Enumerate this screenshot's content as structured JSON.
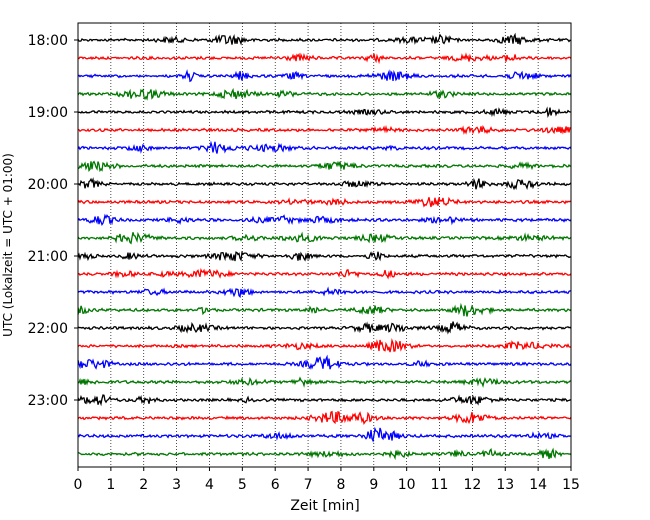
{
  "chart_data": {
    "type": "line",
    "title": "",
    "xlabel": "Zeit  [min]",
    "ylabel": "UTC (Lokalzeit = UTC + 01:00)",
    "xlim": [
      0,
      15
    ],
    "x_ticks": [
      "0",
      "1",
      "2",
      "3",
      "4",
      "5",
      "6",
      "7",
      "8",
      "9",
      "10",
      "11",
      "12",
      "13",
      "14",
      "15"
    ],
    "y_ticks": [
      "18:00",
      "19:00",
      "20:00",
      "21:00",
      "22:00",
      "23:00"
    ],
    "grid": "vertical dotted at each minute",
    "trace_interval_min": 15,
    "start_time": "18:00",
    "trace_count": 24,
    "trace_colors": [
      "#000000",
      "#ff0000",
      "#0000ff",
      "#007700"
    ],
    "traces": [
      {
        "time": "18:00",
        "color_index": 0
      },
      {
        "time": "18:15",
        "color_index": 1
      },
      {
        "time": "18:30",
        "color_index": 2
      },
      {
        "time": "18:45",
        "color_index": 3
      },
      {
        "time": "19:00",
        "color_index": 0
      },
      {
        "time": "19:15",
        "color_index": 1
      },
      {
        "time": "19:30",
        "color_index": 2
      },
      {
        "time": "19:45",
        "color_index": 3
      },
      {
        "time": "20:00",
        "color_index": 0
      },
      {
        "time": "20:15",
        "color_index": 1
      },
      {
        "time": "20:30",
        "color_index": 2
      },
      {
        "time": "20:45",
        "color_index": 3
      },
      {
        "time": "21:00",
        "color_index": 0
      },
      {
        "time": "21:15",
        "color_index": 1
      },
      {
        "time": "21:30",
        "color_index": 2
      },
      {
        "time": "21:45",
        "color_index": 3
      },
      {
        "time": "22:00",
        "color_index": 0
      },
      {
        "time": "22:15",
        "color_index": 1
      },
      {
        "time": "22:30",
        "color_index": 2
      },
      {
        "time": "22:45",
        "color_index": 3
      },
      {
        "time": "23:00",
        "color_index": 0
      },
      {
        "time": "23:15",
        "color_index": 1
      },
      {
        "time": "23:30",
        "color_index": 2
      },
      {
        "time": "23:45",
        "color_index": 3
      }
    ]
  }
}
